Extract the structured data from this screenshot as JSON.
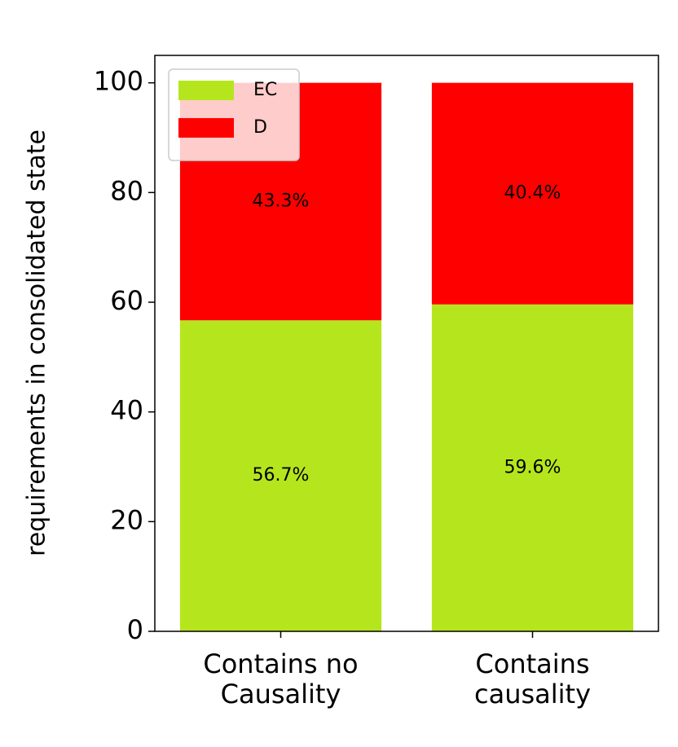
{
  "chart_data": {
    "type": "stacked_bar",
    "ylabel": "requirements in consolidated state",
    "categories": [
      "Contains no\nCausality",
      "Contains\ncausality"
    ],
    "series": [
      {
        "name": "EC",
        "color": "#b5e61d",
        "values": [
          56.7,
          59.6
        ],
        "value_labels": [
          "56.7%",
          "59.6%"
        ]
      },
      {
        "name": "D",
        "color": "#ff0000",
        "values": [
          43.3,
          40.4
        ],
        "value_labels": [
          "43.3%",
          "40.4%"
        ]
      }
    ],
    "ylim": [
      0,
      105
    ],
    "yticks": [
      0,
      20,
      40,
      60,
      80,
      100
    ],
    "legend": "upper left"
  }
}
